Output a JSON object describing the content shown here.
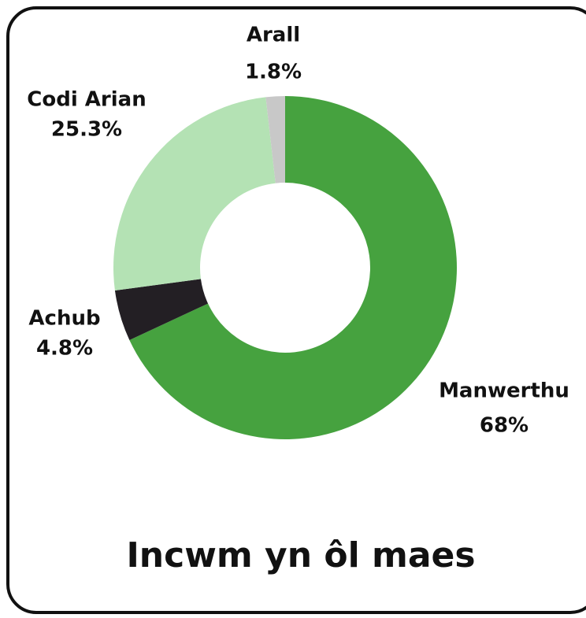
{
  "chart_data": {
    "type": "pie",
    "title": "Incwm yn ôl maes",
    "categories": [
      "Manwerthu",
      "Achub",
      "Codi Arian",
      "Arall"
    ],
    "values": [
      68,
      4.8,
      25.3,
      1.8
    ],
    "value_labels": [
      "68%",
      "4.8%",
      "25.3%",
      "1.8%"
    ],
    "colors": [
      "#46a23f",
      "#231f24",
      "#b4e2b4",
      "#c8c8c8"
    ]
  }
}
